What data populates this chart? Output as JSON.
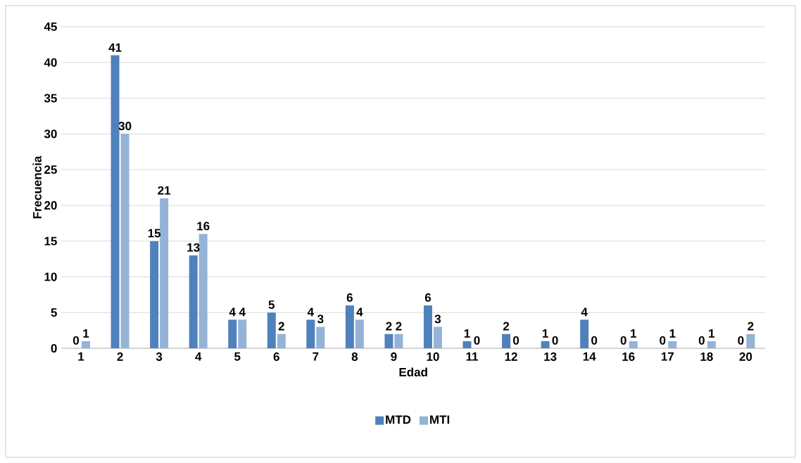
{
  "chart_data": {
    "type": "bar",
    "xlabel": "Edad",
    "ylabel": "Frecuencia",
    "categories": [
      "1",
      "2",
      "3",
      "4",
      "5",
      "6",
      "7",
      "8",
      "9",
      "10",
      "11",
      "12",
      "13",
      "14",
      "16",
      "17",
      "18",
      "20"
    ],
    "series": [
      {
        "name": "MTD",
        "color": "#4f81bd",
        "values": [
          0,
          41,
          15,
          13,
          4,
          5,
          4,
          6,
          2,
          6,
          1,
          2,
          1,
          4,
          0,
          0,
          0,
          0
        ]
      },
      {
        "name": "MTI",
        "color": "#95b3d7",
        "values": [
          1,
          30,
          21,
          16,
          4,
          2,
          3,
          4,
          2,
          3,
          0,
          0,
          0,
          0,
          1,
          1,
          1,
          2
        ]
      }
    ],
    "ylim": [
      0,
      45
    ],
    "yticks": [
      0,
      5,
      10,
      15,
      20,
      25,
      30,
      35,
      40,
      45
    ],
    "grid": "y",
    "legend": "bottom",
    "data_labels": true
  }
}
